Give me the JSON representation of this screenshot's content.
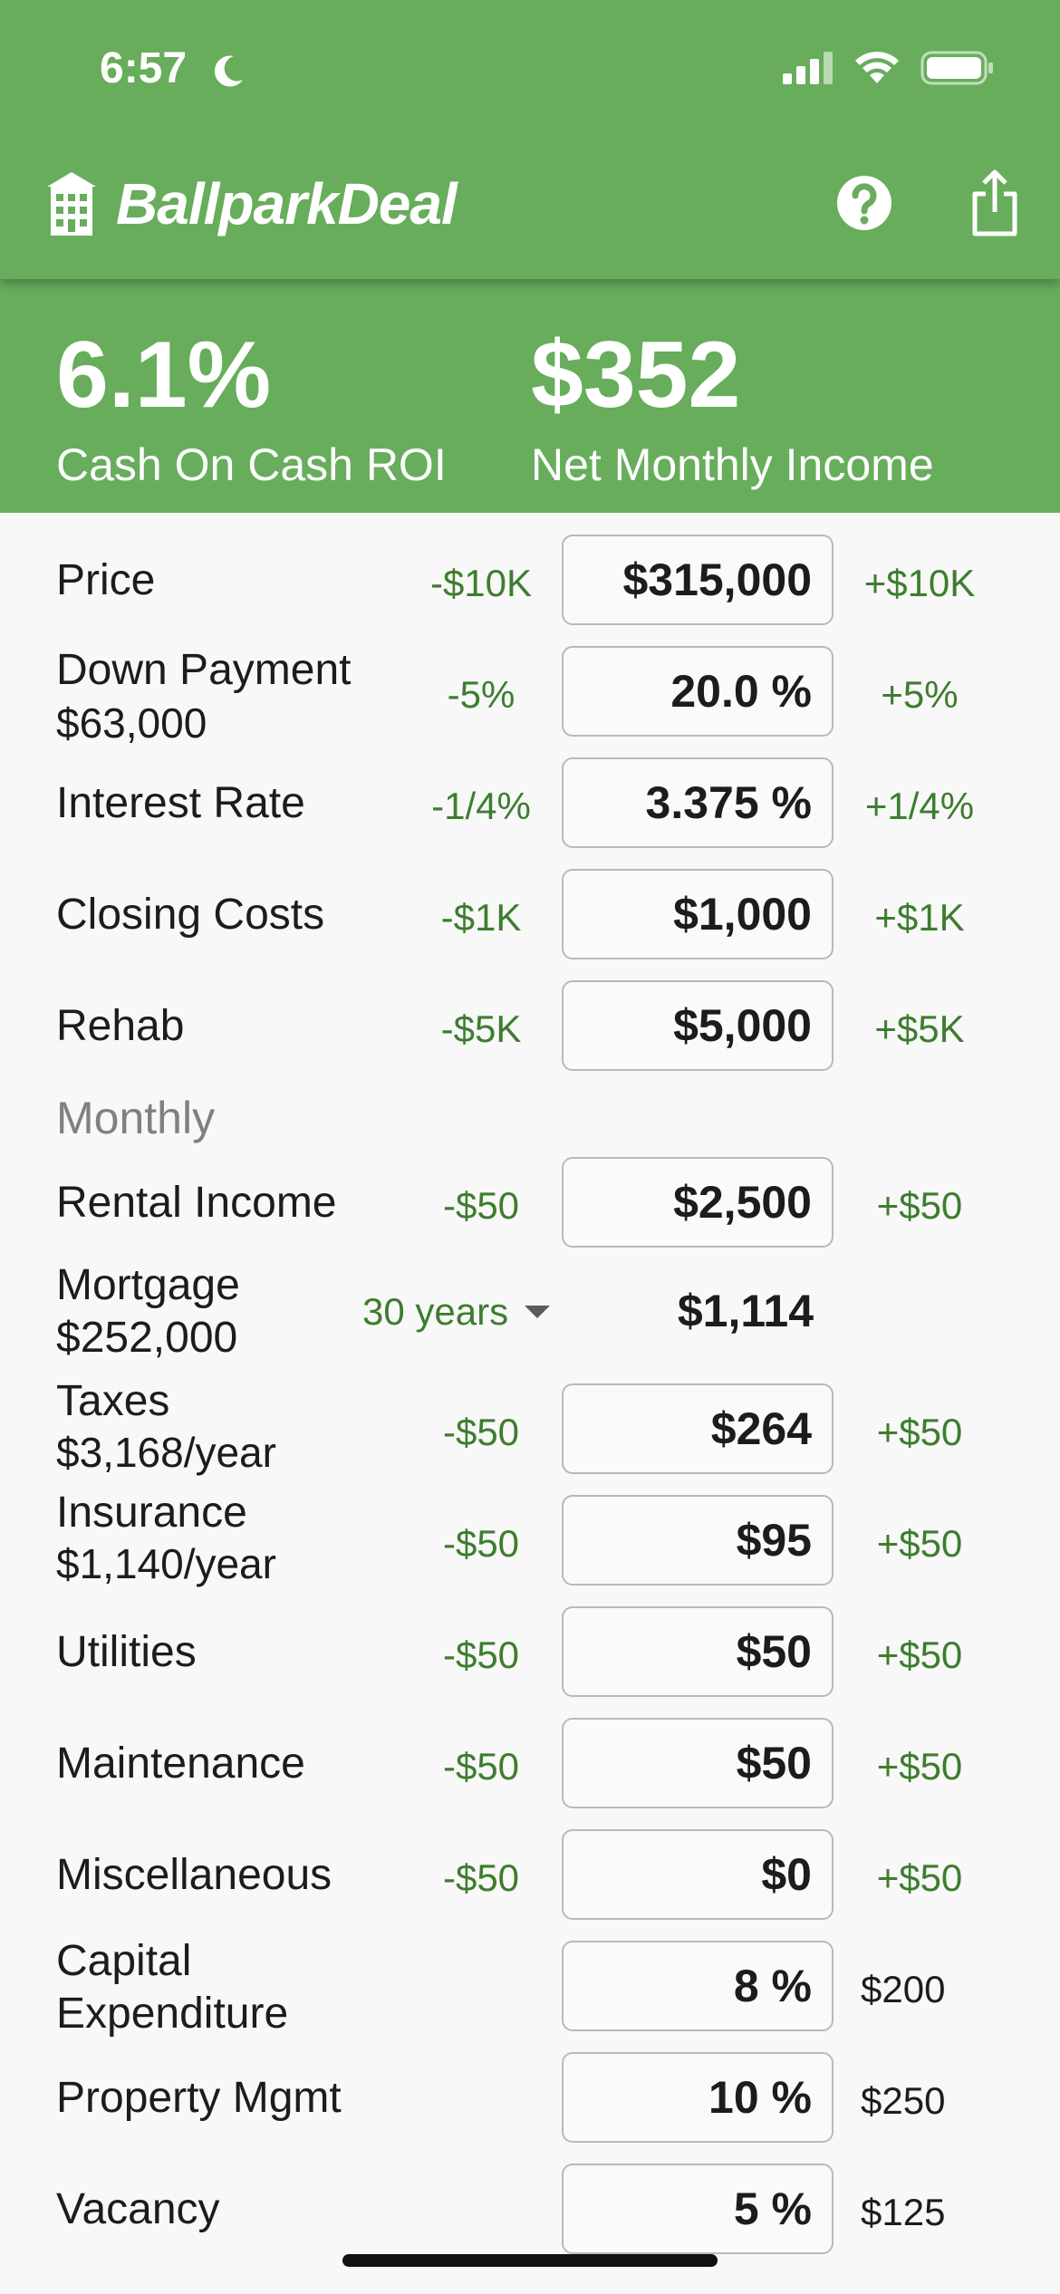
{
  "status_bar": {
    "time": "6:57"
  },
  "app": {
    "title": "BallparkDeal",
    "accent_color": "#67ad5b"
  },
  "summary": {
    "roi_value": "6.1%",
    "roi_label": "Cash On Cash ROI",
    "income_value": "$352",
    "income_label": "Net Monthly Income"
  },
  "rows": {
    "price": {
      "label": "Price",
      "dec": "-$10K",
      "value": "$315,000",
      "inc": "+$10K"
    },
    "down_payment": {
      "label": "Down Payment",
      "sub": "$63,000",
      "dec": "-5%",
      "value": "20.0 %",
      "inc": "+5%"
    },
    "interest_rate": {
      "label": "Interest Rate",
      "dec": "-1/4%",
      "value": "3.375 %",
      "inc": "+1/4%"
    },
    "closing_costs": {
      "label": "Closing Costs",
      "dec": "-$1K",
      "value": "$1,000",
      "inc": "+$1K"
    },
    "rehab": {
      "label": "Rehab",
      "dec": "-$5K",
      "value": "$5,000",
      "inc": "+$5K"
    },
    "monthly_section": "Monthly",
    "rental_income": {
      "label": "Rental Income",
      "dec": "-$50",
      "value": "$2,500",
      "inc": "+$50"
    },
    "mortgage": {
      "label": "Mortgage",
      "sub": "$252,000",
      "term": "30 years",
      "value": "$1,114"
    },
    "taxes": {
      "label": "Taxes",
      "sub": "$3,168/year",
      "dec": "-$50",
      "value": "$264",
      "inc": "+$50"
    },
    "insurance": {
      "label": "Insurance",
      "sub": "$1,140/year",
      "dec": "-$50",
      "value": "$95",
      "inc": "+$50"
    },
    "utilities": {
      "label": "Utilities",
      "dec": "-$50",
      "value": "$50",
      "inc": "+$50"
    },
    "maintenance": {
      "label": "Maintenance",
      "dec": "-$50",
      "value": "$50",
      "inc": "+$50"
    },
    "miscellaneous": {
      "label": "Miscellaneous",
      "dec": "-$50",
      "value": "$0",
      "inc": "+$50"
    },
    "capex": {
      "label": "Capital",
      "label2": "Expenditure",
      "value": "8 %",
      "amount": "$200"
    },
    "property_mgmt": {
      "label": "Property Mgmt",
      "value": "10 %",
      "amount": "$250"
    },
    "vacancy": {
      "label": "Vacancy",
      "value": "5 %",
      "amount": "$125"
    }
  }
}
